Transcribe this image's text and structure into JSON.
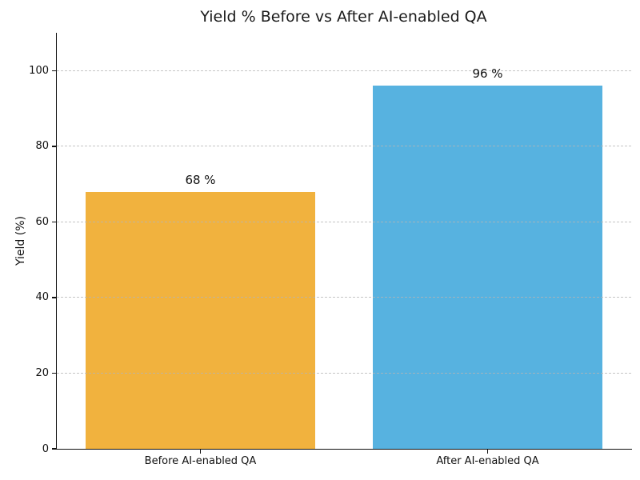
{
  "chart_data": {
    "type": "bar",
    "title": "Yield % Before vs After AI-enabled QA",
    "xlabel": "",
    "ylabel": "Yield (%)",
    "categories": [
      "Before AI-enabled QA",
      "After AI-enabled QA"
    ],
    "values": [
      68,
      96
    ],
    "bar_labels": [
      "68 %",
      "96 %"
    ],
    "bar_colors": [
      "#F1B23E",
      "#57B2E0"
    ],
    "ylim": [
      0,
      110
    ],
    "yticks": [
      0,
      20,
      40,
      60,
      80,
      100
    ],
    "grid": "horizontal-dashed-over-bars",
    "legend_position": "none",
    "background_color": "#ffffff"
  }
}
